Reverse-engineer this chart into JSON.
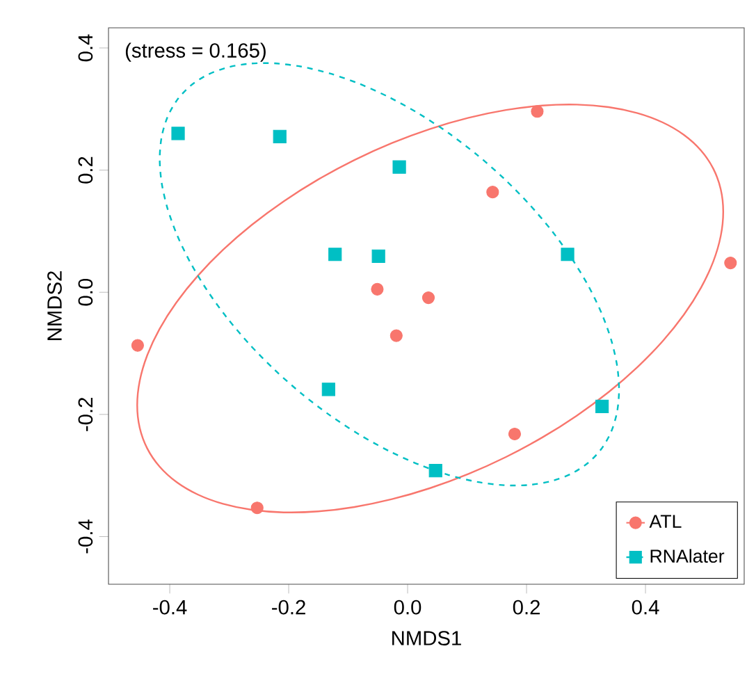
{
  "chart_data": {
    "type": "scatter",
    "xlabel": "NMDS1",
    "ylabel": "NMDS2",
    "annotations": [
      "(stress = 0.165)"
    ],
    "xlim": [
      -0.503,
      0.566
    ],
    "ylim": [
      -0.478,
      0.433
    ],
    "xticks": [
      -0.4,
      -0.2,
      {
        "value": 0,
        "label": "0.0"
      },
      0.2,
      0.4
    ],
    "yticks": [
      -0.4,
      -0.2,
      {
        "value": 0,
        "label": "0.0"
      },
      0.2,
      0.4
    ],
    "grid": false,
    "legend": "bottom right",
    "series": [
      {
        "name": "ATL",
        "type": "scatter",
        "marker": "circle",
        "line_style": "solid",
        "color": "#f8766d",
        "x": [
          -0.454,
          -0.253,
          -0.051,
          -0.019,
          0.035,
          0.143,
          0.218,
          0.18,
          0.543
        ],
        "values": [
          -0.087,
          -0.353,
          0.005,
          -0.071,
          -0.009,
          0.164,
          0.296,
          -0.232,
          0.048
        ]
      },
      {
        "name": "RNAlater",
        "type": "scatter",
        "marker": "square",
        "line_style": "dashed",
        "color": "#00bfc4",
        "x": [
          -0.386,
          -0.215,
          -0.014,
          -0.122,
          -0.049,
          0.269,
          -0.133,
          0.327,
          0.047
        ],
        "values": [
          0.26,
          0.255,
          0.205,
          0.062,
          0.059,
          0.062,
          -0.159,
          -0.187,
          -0.292
        ]
      }
    ]
  }
}
